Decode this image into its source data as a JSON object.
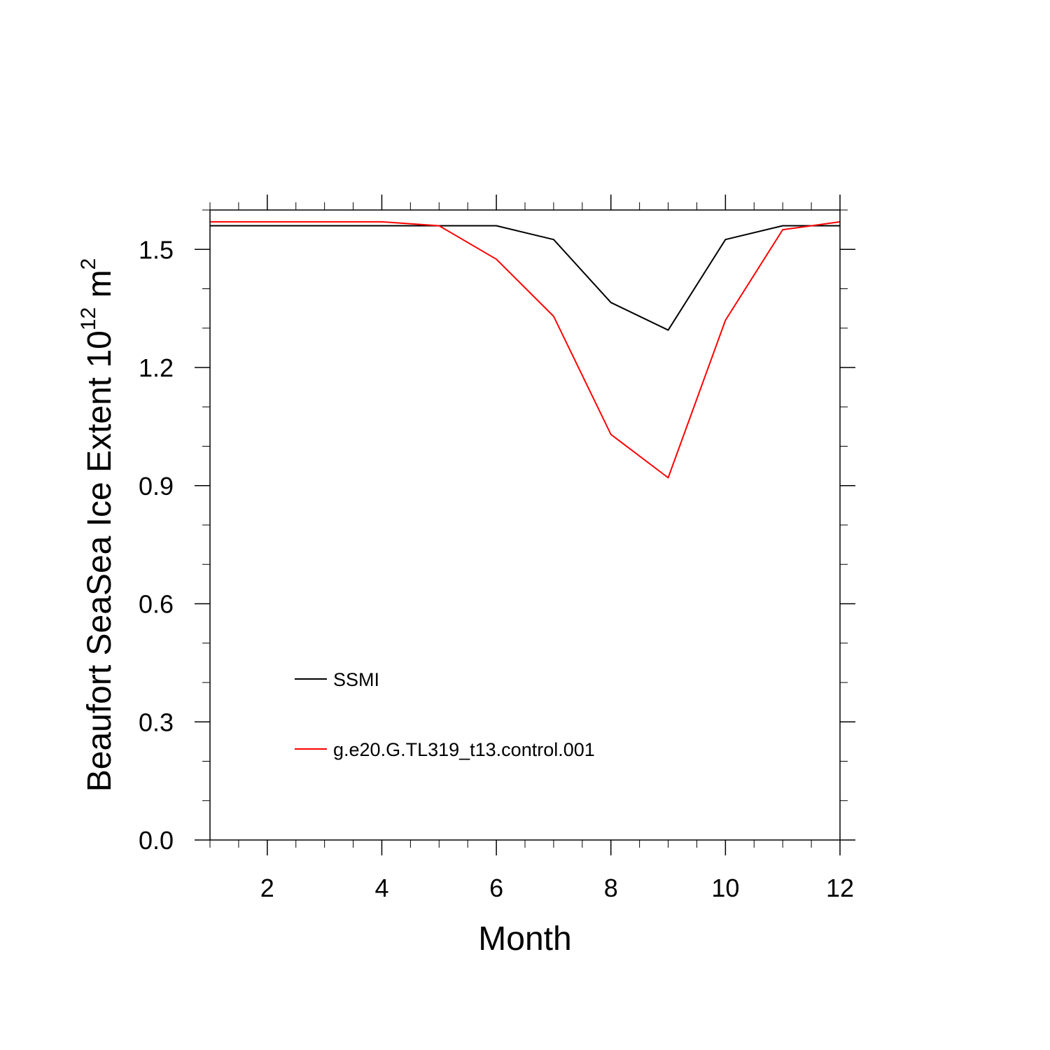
{
  "chart_data": {
    "type": "line",
    "title": "",
    "xlabel": "Month",
    "ylabel": {
      "main": "Beaufort SeaSea Ice Extent 10",
      "exponent": "12",
      "unit": " m",
      "unit_exponent": "2"
    },
    "xlim": [
      1,
      12
    ],
    "ylim": [
      0,
      1.6
    ],
    "x_ticks": [
      2,
      4,
      6,
      8,
      10,
      12
    ],
    "x_tick_labels": [
      "2",
      "4",
      "6",
      "8",
      "10",
      "12"
    ],
    "y_ticks": [
      0.0,
      0.3,
      0.6,
      0.9,
      1.2,
      1.5
    ],
    "y_tick_labels": [
      "0.0",
      "0.3",
      "0.6",
      "0.9",
      "1.2",
      "1.5"
    ],
    "x_minor_step": 0.5,
    "y_minor_step": 0.1,
    "grid": false,
    "legend_position": "bottom-left",
    "x": [
      1,
      2,
      3,
      4,
      5,
      6,
      7,
      8,
      9,
      10,
      11,
      12
    ],
    "series": [
      {
        "name": "SSMI",
        "color": "#000000",
        "values": [
          1.56,
          1.56,
          1.56,
          1.56,
          1.56,
          1.56,
          1.525,
          1.365,
          1.295,
          1.525,
          1.56,
          1.56
        ]
      },
      {
        "name": "g.e20.G.TL319_t13.control.001",
        "color": "#ff0000",
        "values": [
          1.57,
          1.57,
          1.57,
          1.57,
          1.56,
          1.475,
          1.33,
          1.03,
          0.92,
          1.32,
          1.55,
          1.57
        ]
      }
    ]
  }
}
